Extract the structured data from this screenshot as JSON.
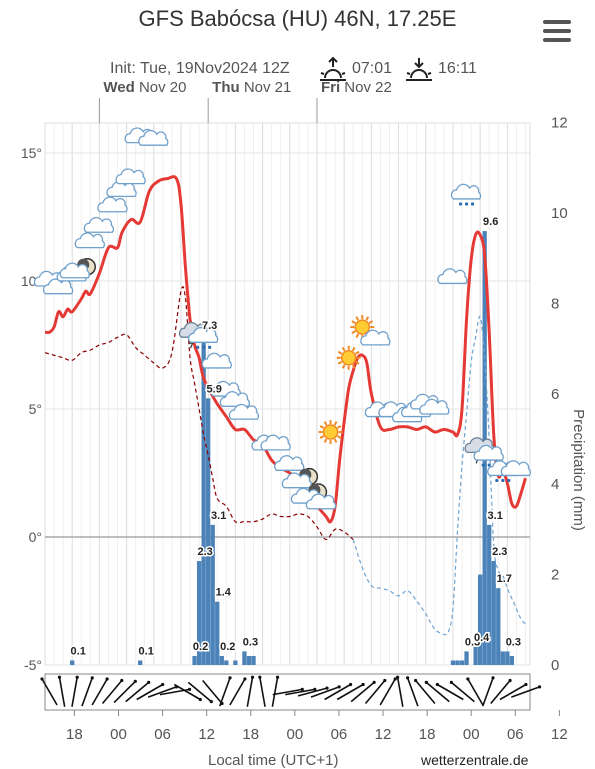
{
  "header": {
    "title": "GFS Babócsa (HU) 46N, 17.25E",
    "init": "Init: Tue, 19Nov2024 12Z",
    "sunrise": "07:01",
    "sunset": "16:11"
  },
  "footer": {
    "xlabel": "Local time (UTC+1)",
    "credit": "wetterzentrale.de"
  },
  "chart_data": {
    "type": "line",
    "x_unit": "hours since Tue 19 Nov 12:00 local",
    "day_labels": [
      {
        "day": "Wed",
        "date": "Nov 20"
      },
      {
        "day": "Thu",
        "date": "Nov 21"
      },
      {
        "day": "Fri",
        "date": "Nov 22"
      }
    ],
    "x_tick_labels": [
      "18",
      "00",
      "06",
      "12",
      "18",
      "00",
      "06",
      "12",
      "18",
      "00",
      "06",
      "12"
    ],
    "y_left": {
      "ticks": [
        "15°",
        "10°",
        "5°",
        "0°",
        "-5°"
      ],
      "range": [
        -5,
        15.5
      ]
    },
    "y_right": {
      "label": "Precipitation (mm)",
      "ticks": [
        "12",
        "10",
        "8",
        "6",
        "4",
        "2",
        "0"
      ],
      "range": [
        0,
        12
      ]
    },
    "series": [
      {
        "kind": "temperature",
        "color": "#e53935",
        "points": [
          [
            0,
            8
          ],
          [
            1,
            8
          ],
          [
            2,
            8.2
          ],
          [
            3,
            8.8
          ],
          [
            4,
            8.6
          ],
          [
            5,
            8.9
          ],
          [
            6,
            8.8
          ],
          [
            8,
            9.3
          ],
          [
            9,
            9.6
          ],
          [
            10,
            9.5
          ],
          [
            12,
            10.3
          ],
          [
            14,
            11.3
          ],
          [
            16,
            11.3
          ],
          [
            17,
            11.9
          ],
          [
            19,
            12.4
          ],
          [
            21,
            12.3
          ],
          [
            23,
            13.5
          ],
          [
            25,
            13.9
          ],
          [
            27,
            14
          ],
          [
            29,
            14
          ],
          [
            30,
            13
          ],
          [
            31,
            10.5
          ],
          [
            32,
            8.5
          ],
          [
            33,
            7.5
          ],
          [
            34,
            7
          ],
          [
            35,
            6.2
          ],
          [
            37,
            5.5
          ],
          [
            38,
            5.2
          ],
          [
            40,
            4.7
          ],
          [
            42,
            4.2
          ],
          [
            44,
            4.2
          ],
          [
            46,
            3.8
          ],
          [
            48,
            3.6
          ],
          [
            50,
            3
          ],
          [
            52,
            2.7
          ],
          [
            54,
            2.5
          ],
          [
            56,
            2.2
          ],
          [
            58,
            1.5
          ],
          [
            60,
            1.2
          ],
          [
            62,
            0.8
          ],
          [
            63,
            0.6
          ],
          [
            64,
            1.2
          ],
          [
            65,
            3
          ],
          [
            66,
            4.5
          ],
          [
            67,
            5.8
          ],
          [
            68,
            6.5
          ],
          [
            69,
            7
          ],
          [
            70,
            7.1
          ],
          [
            71,
            6.8
          ],
          [
            72,
            5.6
          ],
          [
            74,
            4.3
          ],
          [
            76,
            4.2
          ],
          [
            78,
            4.3
          ],
          [
            80,
            4.3
          ],
          [
            82,
            4.2
          ],
          [
            84,
            4.3
          ],
          [
            86,
            4.1
          ],
          [
            88,
            4.2
          ],
          [
            90,
            4.1
          ],
          [
            91,
            4
          ],
          [
            92,
            5
          ],
          [
            93,
            8.5
          ],
          [
            94,
            10.8
          ],
          [
            95,
            11.8
          ],
          [
            96,
            11.8
          ],
          [
            97,
            11
          ],
          [
            98,
            8
          ],
          [
            99,
            4
          ],
          [
            100,
            2.4
          ],
          [
            101,
            2.6
          ],
          [
            102,
            2.1
          ],
          [
            103,
            1.3
          ],
          [
            104,
            1.2
          ],
          [
            105,
            1.7
          ],
          [
            106,
            2.3
          ]
        ]
      },
      {
        "kind": "dewpoint",
        "color": "#8b0000",
        "points": [
          [
            0,
            7.2
          ],
          [
            2,
            7.1
          ],
          [
            4,
            7.0
          ],
          [
            6,
            6.9
          ],
          [
            8,
            7.2
          ],
          [
            10,
            7.3
          ],
          [
            12,
            7.5
          ],
          [
            14,
            7.6
          ],
          [
            16,
            7.8
          ],
          [
            18,
            7.9
          ],
          [
            20,
            7.4
          ],
          [
            22,
            7.1
          ],
          [
            24,
            6.8
          ],
          [
            26,
            6.6
          ],
          [
            28,
            7.2
          ],
          [
            30,
            9.6
          ],
          [
            31,
            9.3
          ],
          [
            32,
            7
          ],
          [
            33,
            6
          ],
          [
            34,
            5
          ],
          [
            35,
            4
          ],
          [
            36,
            3.2
          ],
          [
            37,
            2.3
          ],
          [
            38,
            1.5
          ],
          [
            40,
            1.2
          ],
          [
            42,
            0.6
          ],
          [
            44,
            0.6
          ],
          [
            46,
            0.6
          ],
          [
            48,
            0.7
          ],
          [
            50,
            0.9
          ],
          [
            52,
            0.8
          ],
          [
            54,
            0.8
          ],
          [
            56,
            0.9
          ],
          [
            58,
            0.8
          ],
          [
            60,
            0.4
          ],
          [
            62,
            -0.1
          ],
          [
            64,
            0.3
          ],
          [
            66,
            0.2
          ],
          [
            68,
            -0.1
          ]
        ]
      },
      {
        "kind": "dewpoint-cold",
        "color": "#6fa3d2",
        "points": [
          [
            68,
            -0.1
          ],
          [
            70,
            -1.2
          ],
          [
            72,
            -1.9
          ],
          [
            74,
            -2
          ],
          [
            76,
            -2.1
          ],
          [
            78,
            -2.3
          ],
          [
            80,
            -2.1
          ],
          [
            82,
            -2.5
          ],
          [
            84,
            -3
          ],
          [
            86,
            -3.6
          ],
          [
            88,
            -3.8
          ],
          [
            89,
            -3.7
          ],
          [
            90,
            -2.8
          ],
          [
            91,
            0.2
          ],
          [
            92,
            2.8
          ],
          [
            93,
            4.8
          ],
          [
            94,
            6.8
          ],
          [
            95,
            7.8
          ],
          [
            96,
            8.6
          ],
          [
            97,
            7
          ],
          [
            98,
            3.8
          ],
          [
            99,
            -0.3
          ],
          [
            100,
            -1.3
          ],
          [
            101,
            -1.5
          ],
          [
            102,
            -2
          ],
          [
            103,
            -2.4
          ],
          [
            104,
            -2.8
          ],
          [
            105,
            -3.2
          ],
          [
            106,
            -3.4
          ]
        ]
      }
    ],
    "precipitation": [
      {
        "x": 6,
        "mm": 0.1,
        "label": "0.1"
      },
      {
        "x": 21,
        "mm": 0.1,
        "label": "0.1"
      },
      {
        "x": 33,
        "mm": 0.2,
        "label": "0.2"
      },
      {
        "x": 34,
        "mm": 2.3,
        "label": "2.3"
      },
      {
        "x": 35,
        "mm": 7.3,
        "label": "7.3"
      },
      {
        "x": 36,
        "mm": 5.9,
        "label": "5.9"
      },
      {
        "x": 37,
        "mm": 3.1,
        "label": "3.1"
      },
      {
        "x": 38,
        "mm": 1.4,
        "label": "1.4"
      },
      {
        "x": 39,
        "mm": 0.2,
        "label": "0.2"
      },
      {
        "x": 40,
        "mm": 0.1
      },
      {
        "x": 42,
        "mm": 0.1
      },
      {
        "x": 44,
        "mm": 0.3,
        "label": "0.3"
      },
      {
        "x": 45,
        "mm": 0.2
      },
      {
        "x": 46,
        "mm": 0.2
      },
      {
        "x": 90,
        "mm": 0.1
      },
      {
        "x": 91,
        "mm": 0.1
      },
      {
        "x": 92,
        "mm": 0.1
      },
      {
        "x": 93,
        "mm": 0.3,
        "label": "0.3"
      },
      {
        "x": 95,
        "mm": 0.4,
        "label": "0.4"
      },
      {
        "x": 96,
        "mm": 2.0
      },
      {
        "x": 97,
        "mm": 9.6,
        "label": "9.6"
      },
      {
        "x": 98,
        "mm": 3.1,
        "label": "3.1"
      },
      {
        "x": 99,
        "mm": 2.3,
        "label": "2.3"
      },
      {
        "x": 100,
        "mm": 1.7,
        "label": "1.7"
      },
      {
        "x": 101,
        "mm": 0.3
      },
      {
        "x": 102,
        "mm": 0.3,
        "label": "0.3"
      },
      {
        "x": 103,
        "mm": 0.2
      }
    ],
    "weather_icons": [
      {
        "x": 1,
        "t": 10,
        "kind": "cloud"
      },
      {
        "x": 3,
        "t": 9.7,
        "kind": "cloud"
      },
      {
        "x": 6,
        "t": 10.2,
        "kind": "cloud"
      },
      {
        "x": 8,
        "t": 10.4,
        "kind": "moon-cloud"
      },
      {
        "x": 10,
        "t": 11.5,
        "kind": "cloud"
      },
      {
        "x": 12,
        "t": 12.1,
        "kind": "cloud"
      },
      {
        "x": 15,
        "t": 12.9,
        "kind": "cloud"
      },
      {
        "x": 17,
        "t": 13.5,
        "kind": "cloud"
      },
      {
        "x": 19,
        "t": 14,
        "kind": "cloud"
      },
      {
        "x": 21,
        "t": 15.6,
        "kind": "cloud"
      },
      {
        "x": 24,
        "t": 15.5,
        "kind": "cloud"
      },
      {
        "x": 33,
        "t": 8.0,
        "kind": "storm-cloud"
      },
      {
        "x": 35,
        "t": 7.8,
        "kind": "rain-cloud"
      },
      {
        "x": 38,
        "t": 6.8,
        "kind": "cloud"
      },
      {
        "x": 40,
        "t": 5.7,
        "kind": "cloud"
      },
      {
        "x": 42,
        "t": 5.3,
        "kind": "cloud"
      },
      {
        "x": 44,
        "t": 4.8,
        "kind": "cloud"
      },
      {
        "x": 49,
        "t": 3.6,
        "kind": "cloud"
      },
      {
        "x": 51,
        "t": 3.6,
        "kind": "cloud"
      },
      {
        "x": 54,
        "t": 2.8,
        "kind": "cloud"
      },
      {
        "x": 57,
        "t": 2.2,
        "kind": "moon-cloud"
      },
      {
        "x": 59,
        "t": 1.6,
        "kind": "moon-cloud"
      },
      {
        "x": 61,
        "t": 1.3,
        "kind": "cloud"
      },
      {
        "x": 63,
        "t": 4.1,
        "kind": "sun"
      },
      {
        "x": 67,
        "t": 7.0,
        "kind": "sun"
      },
      {
        "x": 70,
        "t": 8.2,
        "kind": "sun"
      },
      {
        "x": 73,
        "t": 7.7,
        "kind": "cloud"
      },
      {
        "x": 74,
        "t": 4.9,
        "kind": "cloud"
      },
      {
        "x": 77,
        "t": 4.9,
        "kind": "cloud"
      },
      {
        "x": 80,
        "t": 4.7,
        "kind": "cloud"
      },
      {
        "x": 82,
        "t": 4.9,
        "kind": "cloud"
      },
      {
        "x": 84,
        "t": 5.2,
        "kind": "cloud"
      },
      {
        "x": 86,
        "t": 5.0,
        "kind": "cloud"
      },
      {
        "x": 90,
        "t": 10.1,
        "kind": "cloud"
      },
      {
        "x": 93,
        "t": 13.4,
        "kind": "rain-cloud"
      },
      {
        "x": 96,
        "t": 3.5,
        "kind": "storm-cloud"
      },
      {
        "x": 98,
        "t": 3.2,
        "kind": "rain-cloud"
      },
      {
        "x": 101,
        "t": 2.6,
        "kind": "rain-cloud"
      },
      {
        "x": 104,
        "t": 2.6,
        "kind": "cloud"
      }
    ],
    "wind_directions_deg": [
      330,
      350,
      10,
      20,
      30,
      40,
      45,
      50,
      60,
      70,
      80,
      120,
      130,
      140,
      20,
      30,
      10,
      350,
      10,
      80,
      80,
      75,
      70,
      60,
      60,
      50,
      40,
      30,
      350,
      340,
      320,
      310,
      300,
      310,
      330,
      20,
      40,
      60,
      70
    ],
    "colors": {
      "grid": "#e3e3e3",
      "bar": "#4b82b8",
      "zero_line": "#aaaaaa"
    }
  }
}
